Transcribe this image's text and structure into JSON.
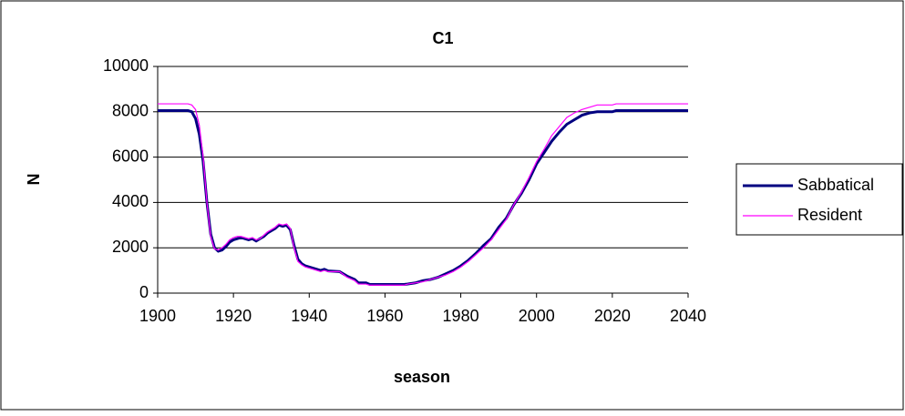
{
  "chart_data": {
    "type": "line",
    "title": "C1",
    "x_label": "season",
    "y_label": "N",
    "x": [
      1900,
      1908,
      1909,
      1910,
      1911,
      1912,
      1913,
      1914,
      1915,
      1916,
      1917,
      1918,
      1919,
      1920,
      1921,
      1922,
      1923,
      1924,
      1925,
      1926,
      1927,
      1928,
      1929,
      1930,
      1931,
      1932,
      1933,
      1934,
      1935,
      1936,
      1937,
      1938,
      1939,
      1940,
      1942,
      1943,
      1944,
      1945,
      1948,
      1950,
      1952,
      1953,
      1955,
      1956,
      1960,
      1965,
      1966,
      1968,
      1970,
      1972,
      1974,
      1976,
      1978,
      1980,
      1982,
      1984,
      1986,
      1988,
      1990,
      1992,
      1994,
      1996,
      1998,
      2000,
      2002,
      2004,
      2006,
      2008,
      2010,
      2012,
      2014,
      2016,
      2020,
      2021,
      2040
    ],
    "series": [
      {
        "name": "Sabbatical",
        "color": "#000080",
        "width": 3,
        "values": [
          8050,
          8050,
          8000,
          7700,
          7000,
          5800,
          4000,
          2600,
          2000,
          1850,
          1900,
          2050,
          2250,
          2350,
          2400,
          2450,
          2400,
          2350,
          2400,
          2300,
          2400,
          2500,
          2650,
          2750,
          2850,
          3000,
          2950,
          3000,
          2800,
          2100,
          1500,
          1300,
          1200,
          1150,
          1050,
          1000,
          1050,
          980,
          950,
          750,
          600,
          450,
          450,
          380,
          380,
          380,
          400,
          450,
          550,
          600,
          700,
          850,
          1000,
          1200,
          1450,
          1750,
          2100,
          2400,
          2900,
          3300,
          3900,
          4400,
          5000,
          5700,
          6200,
          6700,
          7100,
          7450,
          7650,
          7850,
          7950,
          8000,
          8000,
          8050,
          8050
        ]
      },
      {
        "name": "Resident",
        "color": "#ff00ff",
        "width": 1.2,
        "values": [
          8350,
          8350,
          8300,
          8100,
          7400,
          6000,
          4000,
          2500,
          1950,
          1900,
          2000,
          2150,
          2350,
          2450,
          2500,
          2500,
          2450,
          2400,
          2450,
          2350,
          2400,
          2550,
          2700,
          2800,
          2900,
          3050,
          3000,
          3050,
          2850,
          2000,
          1400,
          1250,
          1150,
          1100,
          1000,
          950,
          1000,
          950,
          950,
          700,
          550,
          400,
          400,
          350,
          350,
          350,
          400,
          450,
          500,
          600,
          700,
          800,
          950,
          1150,
          1400,
          1700,
          2000,
          2350,
          2800,
          3250,
          3900,
          4450,
          5100,
          5800,
          6350,
          6950,
          7350,
          7750,
          7950,
          8100,
          8200,
          8300,
          8300,
          8350,
          8350
        ]
      }
    ],
    "xlim": [
      1900,
      2040
    ],
    "xticks": [
      1900,
      1920,
      1940,
      1960,
      1980,
      2000,
      2020,
      2040
    ],
    "ylim": [
      0,
      10000
    ],
    "yticks": [
      0,
      2000,
      4000,
      6000,
      8000,
      10000
    ],
    "grid": true,
    "legend": "right"
  }
}
